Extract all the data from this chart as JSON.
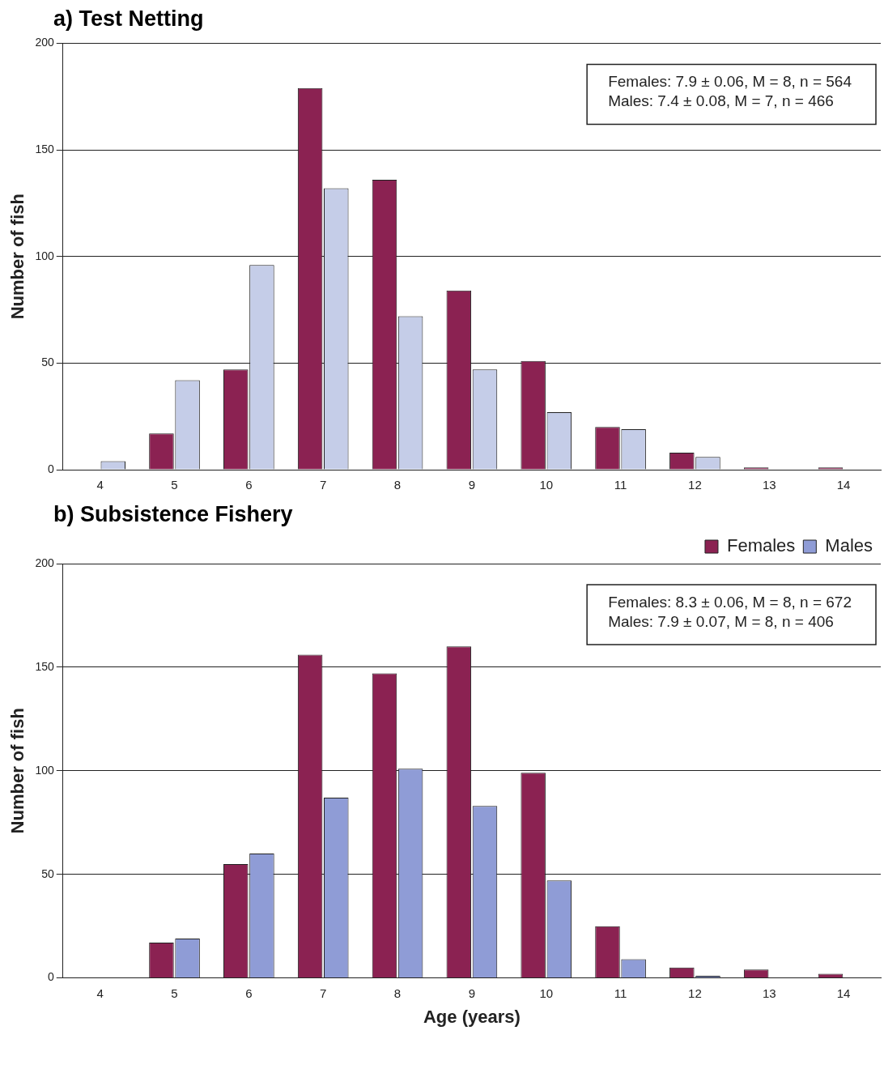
{
  "chart_data": [
    {
      "type": "bar",
      "title": "a) Test Netting",
      "ylabel": "Number of fish",
      "categories": [
        "4",
        "5",
        "6",
        "7",
        "8",
        "9",
        "10",
        "11",
        "12",
        "13",
        "14"
      ],
      "series": [
        {
          "color": "#8b2252",
          "values": [
            0,
            17,
            47,
            179,
            136,
            84,
            51,
            20,
            8,
            1,
            1
          ]
        },
        {
          "color": "#c5cde8",
          "values": [
            4,
            42,
            96,
            132,
            72,
            47,
            27,
            19,
            6,
            0,
            0
          ]
        }
      ],
      "ylim": [
        0,
        200
      ],
      "yticks": [
        0,
        50,
        100,
        150,
        200
      ],
      "grid": "y",
      "annotations": [
        "Females: 7.9 ± 0.06, M = 8, n = 564",
        "Males: 7.4 ± 0.08, M = 7, n = 466"
      ]
    },
    {
      "type": "bar",
      "title": "b) Subsistence Fishery",
      "ylabel": "Number of fish",
      "xlabel": "Age (years)",
      "categories": [
        "4",
        "5",
        "6",
        "7",
        "8",
        "9",
        "10",
        "11",
        "12",
        "13",
        "14"
      ],
      "series": [
        {
          "name": "Females",
          "color": "#8b2252",
          "values": [
            0,
            17,
            55,
            156,
            147,
            160,
            99,
            25,
            5,
            4,
            2
          ]
        },
        {
          "name": "Males",
          "color": "#8f9cd6",
          "values": [
            0,
            19,
            60,
            87,
            101,
            83,
            47,
            9,
            1,
            0,
            0
          ]
        }
      ],
      "ylim": [
        0,
        200
      ],
      "yticks": [
        0,
        50,
        100,
        150,
        200
      ],
      "grid": "y",
      "legend": "top right",
      "annotations": [
        "Females: 8.3 ± 0.06, M = 8, n = 672",
        "Males: 7.9 ± 0.07, M = 8, n = 406"
      ]
    }
  ]
}
